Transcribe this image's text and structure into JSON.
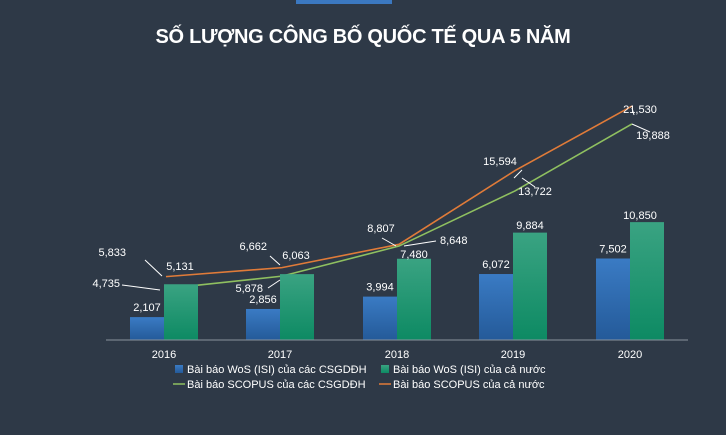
{
  "chart_data": {
    "type": "bar",
    "title": "SỐ LƯỢNG CÔNG BỐ QUỐC TẾ QUA 5 NĂM",
    "categories": [
      "2016",
      "2017",
      "2018",
      "2019",
      "2020"
    ],
    "series": [
      {
        "name": "Bài báo WoS (ISI) của các CSGDĐH",
        "kind": "bar",
        "values": [
          2107,
          2856,
          3994,
          6072,
          7502
        ],
        "labels": [
          "2,107",
          "2,856",
          "3,994",
          "6,072",
          "7,502"
        ],
        "color": "#2f6db3"
      },
      {
        "name": "Bài báo WoS (ISI) của cả nước",
        "kind": "bar",
        "values": [
          5131,
          6063,
          7480,
          9884,
          10850
        ],
        "labels": [
          "5,131",
          "6,063",
          "7,480",
          "9,884",
          "10,850"
        ],
        "color": "#129671"
      },
      {
        "name": "Bài báo SCOPUS của các CSGDĐH",
        "kind": "line",
        "values": [
          4735,
          5878,
          8648,
          13722,
          19888
        ],
        "labels": [
          "4,735",
          "5,878",
          "8,648",
          "13,722",
          "19,888"
        ],
        "color": "#8fc060"
      },
      {
        "name": "Bài báo SCOPUS của cả nước",
        "kind": "line",
        "values": [
          5833,
          6662,
          8807,
          15594,
          21530
        ],
        "labels": [
          "5,833",
          "6,662",
          "8,807",
          "15,594",
          "21,530"
        ],
        "color": "#e07b39"
      }
    ],
    "ylim": [
      0,
      22000
    ],
    "grid": false,
    "legend_position": "bottom"
  }
}
